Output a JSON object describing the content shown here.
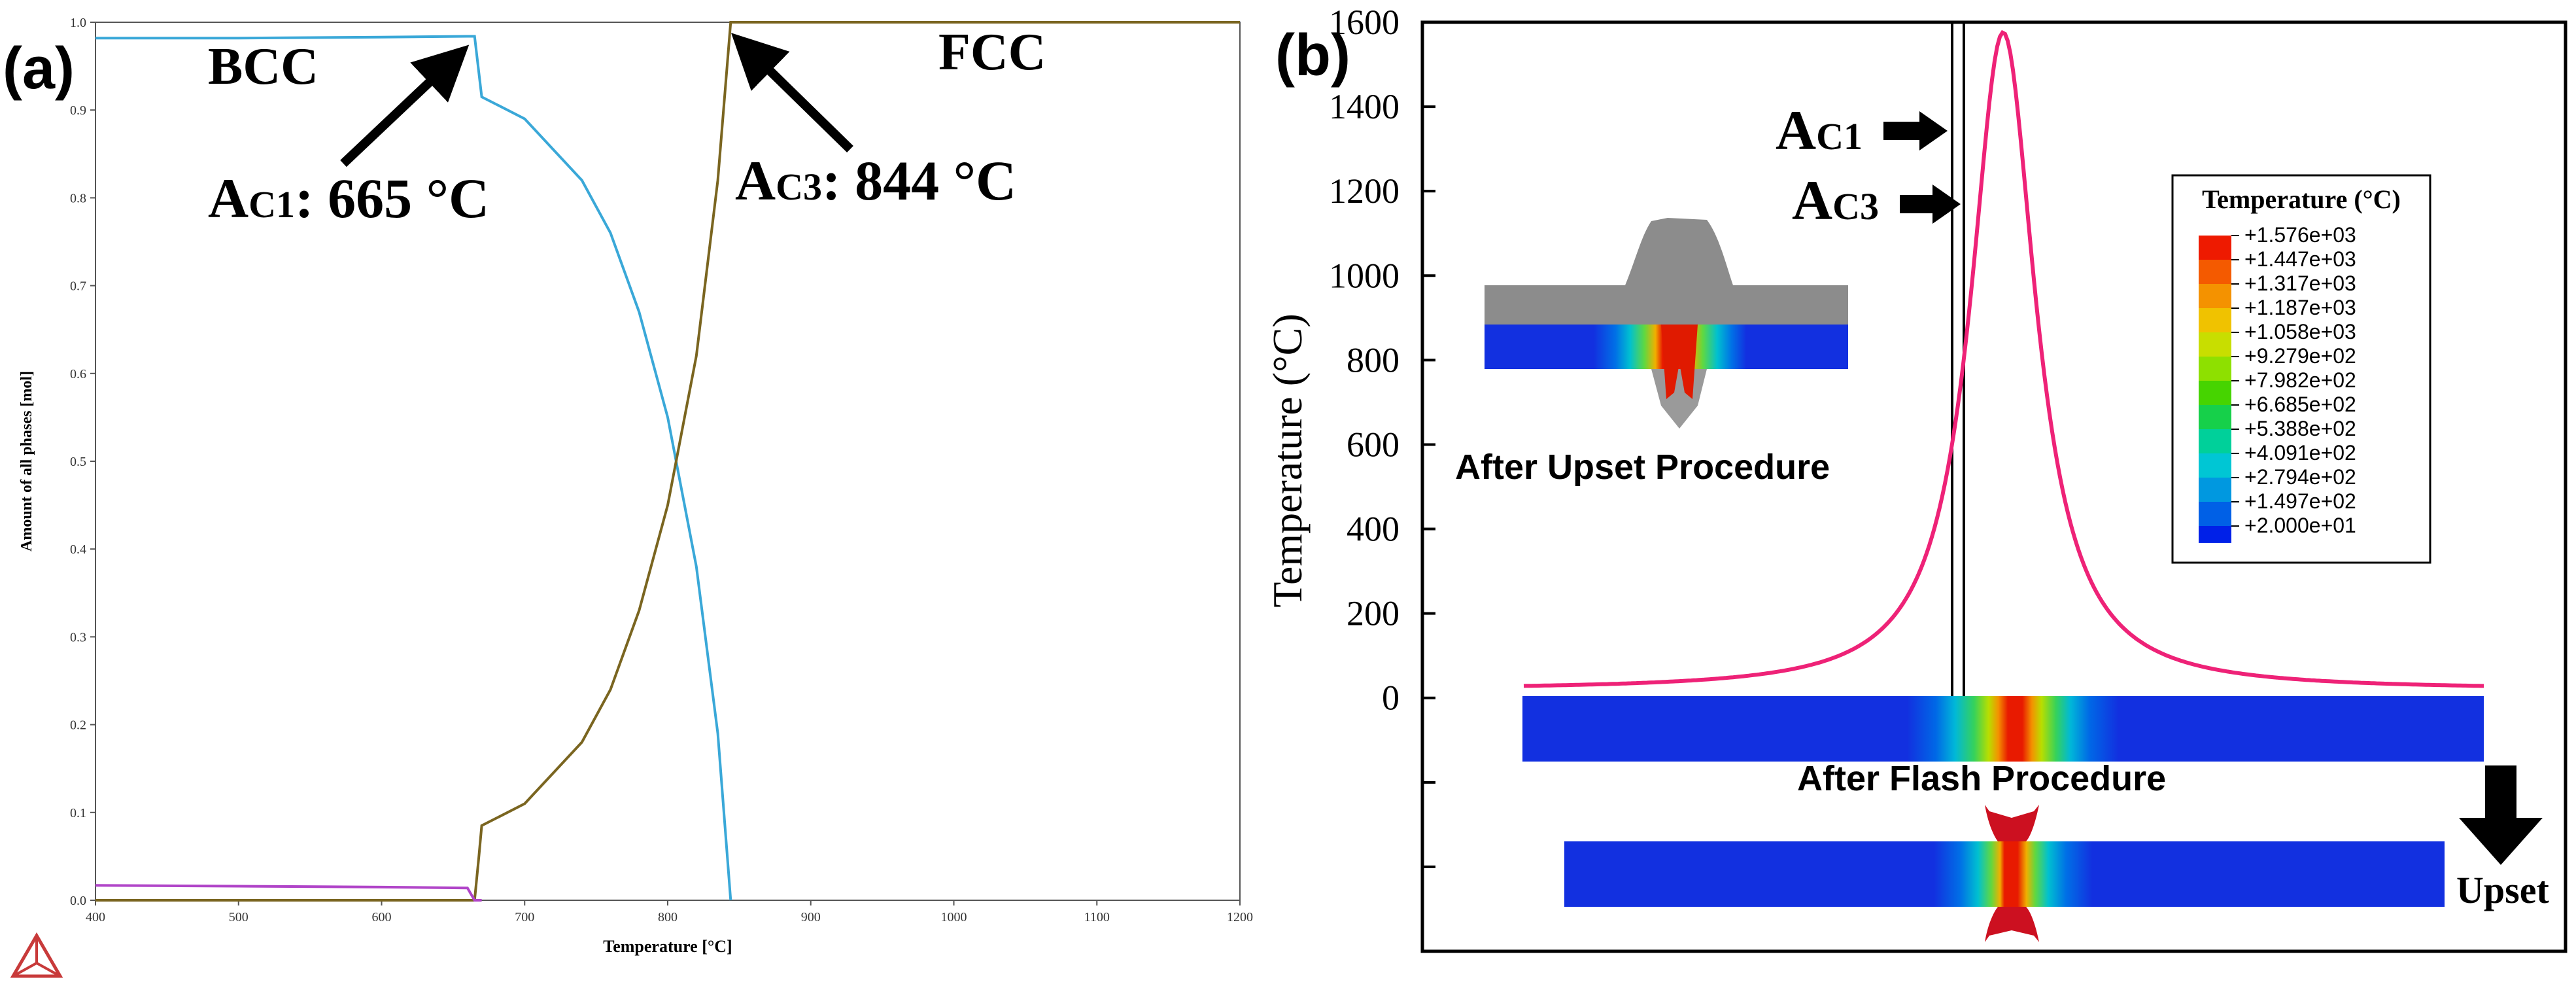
{
  "panel_a": {
    "label": "(a)",
    "chart_data": {
      "type": "line",
      "title": "",
      "xlabel": "Temperature [°C]",
      "ylabel": "Amount of all phases [mol]",
      "xlim": [
        400,
        1200
      ],
      "ylim": [
        0,
        1.0
      ],
      "x_ticks": [
        400,
        500,
        600,
        700,
        800,
        900,
        1000,
        1100,
        1200
      ],
      "y_ticks": [
        0.0,
        0.1,
        0.2,
        0.3,
        0.4,
        0.5,
        0.6,
        0.7,
        0.8,
        0.9,
        1.0
      ],
      "series": [
        {
          "name": "BCC",
          "color": "#3aa8d8",
          "x": [
            400,
            500,
            600,
            660,
            665,
            670,
            700,
            740,
            760,
            780,
            800,
            820,
            835,
            844
          ],
          "y": [
            0.982,
            0.982,
            0.983,
            0.984,
            0.984,
            0.915,
            0.89,
            0.82,
            0.76,
            0.67,
            0.55,
            0.38,
            0.19,
            0.0
          ]
        },
        {
          "name": "FCC",
          "color": "#7a6520",
          "x": [
            400,
            665,
            668,
            670,
            700,
            740,
            760,
            780,
            800,
            820,
            835,
            844,
            900,
            1000,
            1100,
            1200
          ],
          "y": [
            0.0,
            0.0,
            0.05,
            0.085,
            0.11,
            0.18,
            0.24,
            0.33,
            0.45,
            0.62,
            0.82,
            1.0,
            1.0,
            1.0,
            1.0,
            1.0
          ]
        },
        {
          "name": "third phase",
          "color": "#b044c8",
          "x": [
            400,
            500,
            600,
            660,
            665,
            670
          ],
          "y": [
            0.017,
            0.016,
            0.015,
            0.014,
            0.0,
            0.0
          ]
        }
      ],
      "annotations": {
        "bcc": "BCC",
        "fcc": "FCC",
        "ac1_label": "AC1: 665 °C",
        "ac3_label": "AC3: 844 °C",
        "ac1_temp": 665,
        "ac3_temp": 844,
        "ac1_prefix": "A",
        "ac1_sub": "C1",
        "ac1_value": ": 665 °C",
        "ac3_prefix": "A",
        "ac3_sub": "C3",
        "ac3_value": ": 844 °C"
      }
    }
  },
  "panel_b": {
    "label": "(b)",
    "chart_data": {
      "type": "line",
      "title": "",
      "ylabel": "Temperature (°C)",
      "xlabel": "",
      "ylim": [
        -600,
        1600
      ],
      "y_ticks": [
        0,
        200,
        400,
        600,
        800,
        1000,
        1200,
        1400,
        1600
      ],
      "series": [
        {
          "name": "Temperature profile",
          "color": "#ee2277",
          "peak": 1576,
          "base": 20
        }
      ],
      "vertical_lines": [
        "AC1",
        "AC3"
      ],
      "annotations": {
        "ac1_prefix": "A",
        "ac1_sub": "C1",
        "ac3_prefix": "A",
        "ac3_sub": "C3",
        "after_upset": "After Upset Procedure",
        "after_flash": "After Flash Procedure",
        "upset": "Upset"
      }
    },
    "legend": {
      "title": "Temperature (°C)",
      "levels": [
        "+1.576e+03",
        "+1.447e+03",
        "+1.317e+03",
        "+1.187e+03",
        "+1.058e+03",
        "+9.279e+02",
        "+7.982e+02",
        "+6.685e+02",
        "+5.388e+02",
        "+4.091e+02",
        "+2.794e+02",
        "+1.497e+02",
        "+2.000e+01"
      ],
      "colors": [
        "#ee1a00",
        "#f45a00",
        "#f49200",
        "#f0c200",
        "#c8de00",
        "#8ee000",
        "#46d400",
        "#16d04a",
        "#00d09a",
        "#00c6d4",
        "#0098e0",
        "#0060e6",
        "#0020e8"
      ]
    }
  }
}
